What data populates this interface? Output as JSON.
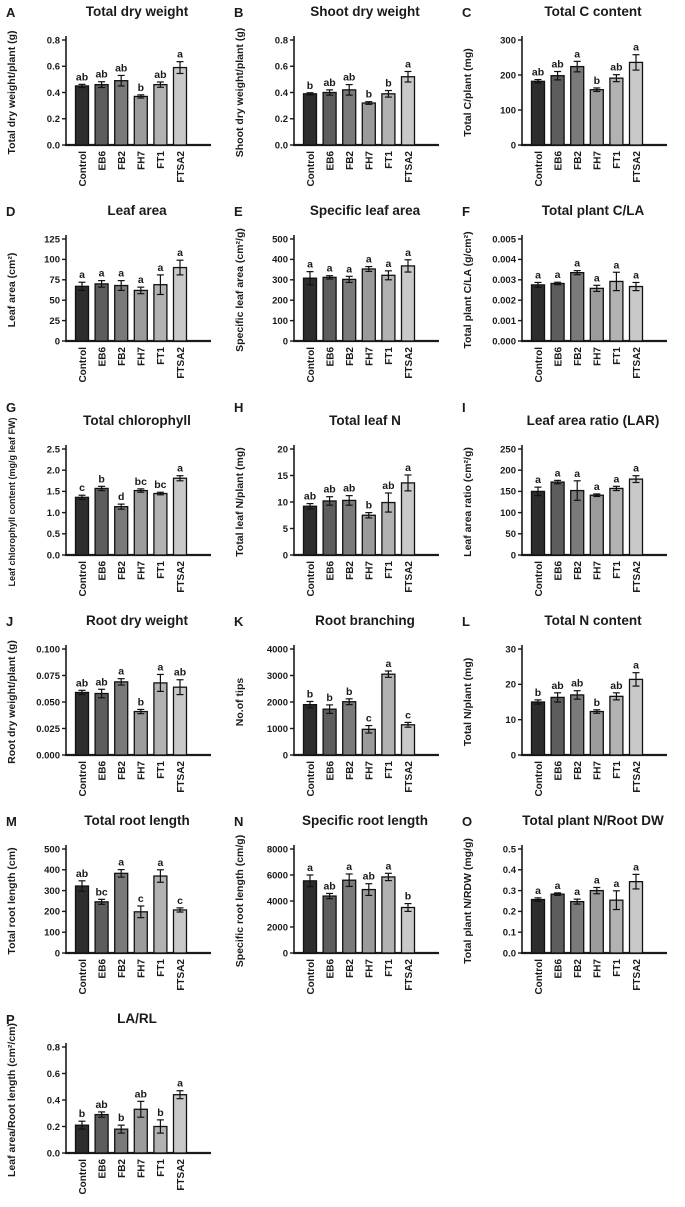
{
  "figure": {
    "categories": [
      "Control",
      "EB6",
      "FB2",
      "FH7",
      "FT1",
      "FTSA2"
    ],
    "bar_colors": [
      "#2d2d2d",
      "#5d5d5d",
      "#7a7a7a",
      "#9b9b9b",
      "#b2b2b2",
      "#c9c9c9"
    ],
    "error_bar_color": "#111111",
    "axis_color": "#1a1a1a"
  },
  "chart_data": [
    {
      "type": "bar",
      "panel": "A",
      "title": "Total dry weight",
      "ylabel": "Total dry weight/plant (g)",
      "categories": [
        "Control",
        "EB6",
        "FB2",
        "FH7",
        "FT1",
        "FTSA2"
      ],
      "values": [
        0.45,
        0.46,
        0.49,
        0.37,
        0.46,
        0.59
      ],
      "errors": [
        0.012,
        0.022,
        0.04,
        0.012,
        0.02,
        0.045
      ],
      "sig_letters": [
        "ab",
        "ab",
        "ab",
        "b",
        "ab",
        "a"
      ],
      "ylim": [
        0,
        0.8
      ],
      "ytick_step": 0.2,
      "ytick_decimals": 1,
      "grid": false,
      "legend": "none"
    },
    {
      "type": "bar",
      "panel": "B",
      "title": "Shoot dry weight",
      "ylabel": "Shoot dry weight/plant (g)",
      "categories": [
        "Control",
        "EB6",
        "FB2",
        "FH7",
        "FT1",
        "FTSA2"
      ],
      "values": [
        0.39,
        0.4,
        0.42,
        0.32,
        0.39,
        0.52
      ],
      "errors": [
        0.008,
        0.02,
        0.04,
        0.01,
        0.025,
        0.04
      ],
      "sig_letters": [
        "b",
        "ab",
        "ab",
        "b",
        "b",
        "a"
      ],
      "ylim": [
        0,
        0.8
      ],
      "ytick_step": 0.2,
      "ytick_decimals": 1,
      "grid": false,
      "legend": "none"
    },
    {
      "type": "bar",
      "panel": "C",
      "title": "Total C content",
      "ylabel": "Total C/plant (mg)",
      "categories": [
        "Control",
        "EB6",
        "FB2",
        "FH7",
        "FT1",
        "FTSA2"
      ],
      "values": [
        182,
        198,
        224,
        158,
        191,
        236
      ],
      "errors": [
        5,
        12,
        15,
        5,
        10,
        22
      ],
      "sig_letters": [
        "ab",
        "ab",
        "a",
        "b",
        "ab",
        "a"
      ],
      "ylim": [
        0,
        300
      ],
      "ytick_step": 100,
      "ytick_decimals": 0,
      "grid": false,
      "legend": "none"
    },
    {
      "type": "bar",
      "panel": "D",
      "title": "Leaf area",
      "ylabel": "Leaf area (cm²)",
      "categories": [
        "Control",
        "EB6",
        "FB2",
        "FH7",
        "FT1",
        "FTSA2"
      ],
      "values": [
        67,
        70,
        68,
        62,
        69,
        90
      ],
      "errors": [
        5,
        4,
        6,
        4,
        12,
        9
      ],
      "sig_letters": [
        "a",
        "a",
        "a",
        "a",
        "a",
        "a"
      ],
      "ylim": [
        0,
        125
      ],
      "ytick_step": 25,
      "ytick_decimals": 0,
      "grid": false,
      "legend": "none"
    },
    {
      "type": "bar",
      "panel": "E",
      "title": "Specific leaf area",
      "ylabel": "Specific leaf area (cm²/g)",
      "categories": [
        "Control",
        "EB6",
        "FB2",
        "FH7",
        "FT1",
        "FTSA2"
      ],
      "values": [
        308,
        312,
        302,
        353,
        322,
        368
      ],
      "errors": [
        32,
        8,
        15,
        12,
        22,
        30
      ],
      "sig_letters": [
        "a",
        "a",
        "a",
        "a",
        "a",
        "a"
      ],
      "ylim": [
        0,
        500
      ],
      "ytick_step": 100,
      "ytick_decimals": 0,
      "grid": false,
      "legend": "none"
    },
    {
      "type": "bar",
      "panel": "F",
      "title": "Total plant C/LA",
      "ylabel": "Total plant C/LA (g/cm²)",
      "categories": [
        "Control",
        "EB6",
        "FB2",
        "FH7",
        "FT1",
        "FTSA2"
      ],
      "values": [
        0.00275,
        0.00282,
        0.00335,
        0.00258,
        0.00292,
        0.00267
      ],
      "errors": [
        0.00012,
        6e-05,
        0.0001,
        0.00015,
        0.00045,
        0.0002
      ],
      "sig_letters": [
        "a",
        "a",
        "a",
        "a",
        "a",
        "a"
      ],
      "ylim": [
        0,
        0.005
      ],
      "ytick_step": 0.001,
      "ytick_decimals": 3,
      "grid": false,
      "legend": "none"
    },
    {
      "type": "bar",
      "panel": "G",
      "title": "Total chlorophyll",
      "ylabel": "Leaf chlorophyll content (mg/g leaf FW)",
      "categories": [
        "Control",
        "EB6",
        "FB2",
        "FH7",
        "FT1",
        "FTSA2"
      ],
      "values": [
        1.36,
        1.57,
        1.14,
        1.52,
        1.45,
        1.81
      ],
      "errors": [
        0.05,
        0.05,
        0.06,
        0.04,
        0.03,
        0.06
      ],
      "sig_letters": [
        "c",
        "b",
        "d",
        "bc",
        "bc",
        "a"
      ],
      "ylim": [
        0,
        2.5
      ],
      "ytick_step": 0.5,
      "ytick_decimals": 1,
      "grid": false,
      "legend": "none"
    },
    {
      "type": "bar",
      "panel": "H",
      "title": "Total leaf N",
      "ylabel": "Total leaf N/plant (mg)",
      "categories": [
        "Control",
        "EB6",
        "FB2",
        "FH7",
        "FT1",
        "FTSA2"
      ],
      "values": [
        9.2,
        10.2,
        10.3,
        7.5,
        9.9,
        13.6
      ],
      "errors": [
        0.5,
        0.8,
        0.9,
        0.5,
        1.8,
        1.5
      ],
      "sig_letters": [
        "ab",
        "ab",
        "ab",
        "b",
        "ab",
        "a"
      ],
      "ylim": [
        0,
        20
      ],
      "ytick_step": 5,
      "ytick_decimals": 0,
      "grid": false,
      "legend": "none"
    },
    {
      "type": "bar",
      "panel": "I",
      "title": "Leaf area ratio (LAR)",
      "ylabel": "Leaf area ratio (cm²/g)",
      "categories": [
        "Control",
        "EB6",
        "FB2",
        "FH7",
        "FT1",
        "FTSA2"
      ],
      "values": [
        150,
        172,
        152,
        141,
        157,
        179
      ],
      "errors": [
        10,
        4,
        23,
        3,
        5,
        8
      ],
      "sig_letters": [
        "a",
        "a",
        "a",
        "a",
        "a",
        "a"
      ],
      "ylim": [
        0,
        250
      ],
      "ytick_step": 50,
      "ytick_decimals": 0,
      "grid": false,
      "legend": "none"
    },
    {
      "type": "bar",
      "panel": "J",
      "title": "Root dry weight",
      "ylabel": "Root dry weight/plant (g)",
      "categories": [
        "Control",
        "EB6",
        "FB2",
        "FH7",
        "FT1",
        "FTSA2"
      ],
      "values": [
        0.059,
        0.058,
        0.069,
        0.041,
        0.068,
        0.064
      ],
      "errors": [
        0.002,
        0.004,
        0.003,
        0.002,
        0.008,
        0.007
      ],
      "sig_letters": [
        "ab",
        "ab",
        "a",
        "b",
        "a",
        "ab"
      ],
      "ylim": [
        0,
        0.1
      ],
      "ytick_step": 0.025,
      "ytick_decimals": 3,
      "grid": false,
      "legend": "none"
    },
    {
      "type": "bar",
      "panel": "K",
      "title": "Root branching",
      "ylabel": "No.of tips",
      "categories": [
        "Control",
        "EB6",
        "FB2",
        "FH7",
        "FT1",
        "FTSA2"
      ],
      "values": [
        1900,
        1730,
        2010,
        970,
        3050,
        1140
      ],
      "errors": [
        120,
        160,
        110,
        140,
        120,
        90
      ],
      "sig_letters": [
        "b",
        "b",
        "b",
        "c",
        "a",
        "c"
      ],
      "ylim": [
        0,
        4000
      ],
      "ytick_step": 1000,
      "ytick_decimals": 0,
      "grid": false,
      "legend": "none"
    },
    {
      "type": "bar",
      "panel": "L",
      "title": "Total N content",
      "ylabel": "Total N/plant (mg)",
      "categories": [
        "Control",
        "EB6",
        "FB2",
        "FH7",
        "FT1",
        "FTSA2"
      ],
      "values": [
        15.0,
        16.3,
        17.0,
        12.3,
        16.6,
        21.4
      ],
      "errors": [
        0.6,
        1.3,
        1.2,
        0.5,
        1.0,
        1.9
      ],
      "sig_letters": [
        "b",
        "ab",
        "ab",
        "b",
        "ab",
        "a"
      ],
      "ylim": [
        0,
        30
      ],
      "ytick_step": 10,
      "ytick_decimals": 0,
      "grid": false,
      "legend": "none"
    },
    {
      "type": "bar",
      "panel": "M",
      "title": "Total root length",
      "ylabel": "Total root length (cm)",
      "categories": [
        "Control",
        "EB6",
        "FB2",
        "FH7",
        "FT1",
        "FTSA2"
      ],
      "values": [
        322,
        246,
        383,
        198,
        370,
        207
      ],
      "errors": [
        25,
        12,
        18,
        28,
        30,
        10
      ],
      "sig_letters": [
        "ab",
        "bc",
        "a",
        "c",
        "a",
        "c"
      ],
      "ylim": [
        0,
        500
      ],
      "ytick_step": 100,
      "ytick_decimals": 0,
      "grid": false,
      "legend": "none"
    },
    {
      "type": "bar",
      "panel": "N",
      "title": "Specific root length",
      "ylabel": "Specific root length (cm/g)",
      "categories": [
        "Control",
        "EB6",
        "FB2",
        "FH7",
        "FT1",
        "FTSA2"
      ],
      "values": [
        5550,
        4380,
        5600,
        4880,
        5850,
        3500
      ],
      "errors": [
        450,
        200,
        480,
        450,
        280,
        300
      ],
      "sig_letters": [
        "a",
        "ab",
        "a",
        "ab",
        "a",
        "b"
      ],
      "ylim": [
        0,
        8000
      ],
      "ytick_step": 2000,
      "ytick_decimals": 0,
      "grid": false,
      "legend": "none"
    },
    {
      "type": "bar",
      "panel": "O",
      "title": "Total plant N/Root DW",
      "ylabel": "Total plant N/RDW (mg/g)",
      "categories": [
        "Control",
        "EB6",
        "FB2",
        "FH7",
        "FT1",
        "FTSA2"
      ],
      "values": [
        0.257,
        0.283,
        0.247,
        0.3,
        0.254,
        0.343
      ],
      "errors": [
        0.008,
        0.006,
        0.012,
        0.015,
        0.045,
        0.035
      ],
      "sig_letters": [
        "a",
        "a",
        "a",
        "a",
        "a",
        "a"
      ],
      "ylim": [
        0,
        0.5
      ],
      "ytick_step": 0.1,
      "ytick_decimals": 1,
      "grid": false,
      "legend": "none"
    },
    {
      "type": "bar",
      "panel": "P",
      "title": "LA/RL",
      "ylabel": "Leaf area/Root length (cm²/cm)",
      "categories": [
        "Control",
        "EB6",
        "FB2",
        "FH7",
        "FT1",
        "FTSA2"
      ],
      "values": [
        0.21,
        0.29,
        0.18,
        0.33,
        0.2,
        0.44
      ],
      "errors": [
        0.03,
        0.02,
        0.03,
        0.06,
        0.05,
        0.03
      ],
      "sig_letters": [
        "b",
        "ab",
        "b",
        "ab",
        "b",
        "a"
      ],
      "ylim": [
        0,
        0.8
      ],
      "ytick_step": 0.2,
      "ytick_decimals": 1,
      "grid": false,
      "legend": "none"
    }
  ]
}
